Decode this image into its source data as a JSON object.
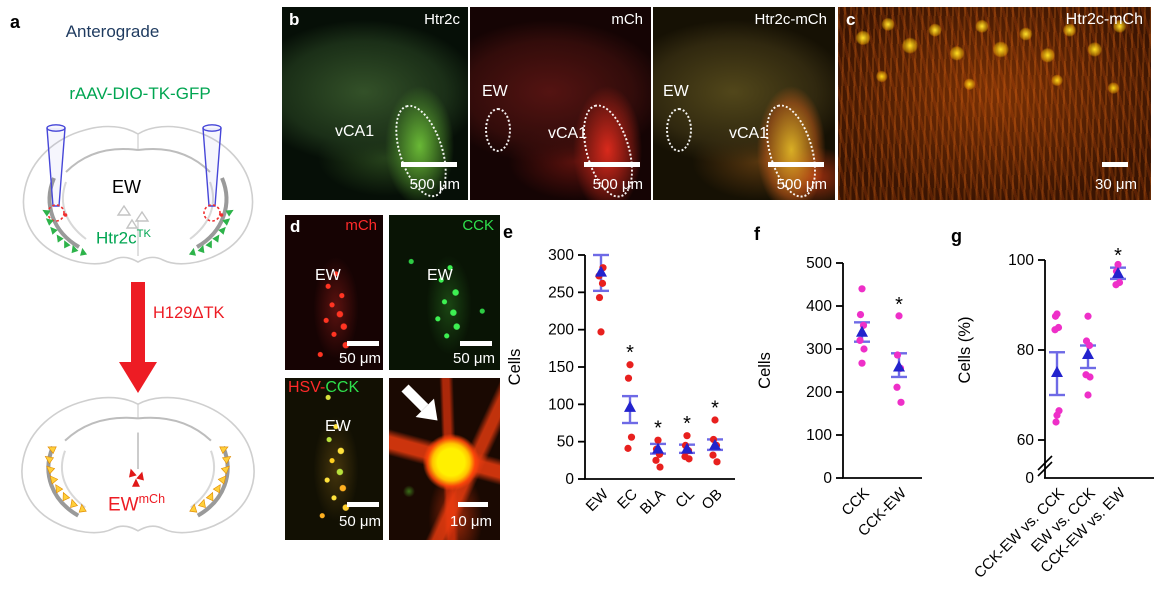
{
  "colors": {
    "title_navy": "#1e3a5f",
    "gfp_green": "#00a551",
    "virus_red": "#ed1c24",
    "point_red": "#e8201e",
    "point_magenta": "#ee2fc8",
    "mean_blue": "#2323cd",
    "error_blue": "#6e6ae6"
  },
  "panel_a": {
    "letter": "a",
    "title": "Anterograde",
    "virus": "rAAV-DIO-TK-GFP",
    "region": "EW",
    "genotype": "Htr2c",
    "genotype_sup": "TK",
    "tracer": "H129ΔTK",
    "result": "EW",
    "result_sup": "mCh"
  },
  "panel_b": {
    "letter": "b",
    "images": [
      {
        "tag": "Htr2c",
        "region2": "vCA1",
        "scale": "500 μm"
      },
      {
        "tag": "mCh",
        "region1": "EW",
        "region2": "vCA1",
        "scale": "500 μm"
      },
      {
        "tag": "Htr2c-mCh",
        "region1": "EW",
        "region2": "vCA1",
        "scale": "500 μm"
      }
    ]
  },
  "panel_c": {
    "letter": "c",
    "tag": "Htr2c-mCh",
    "scale": "30 μm"
  },
  "panel_d": {
    "letter": "d",
    "images": [
      {
        "tag": "mCh",
        "region": "EW",
        "scale": "50 μm"
      },
      {
        "tag": "CCK",
        "region": "EW",
        "scale": "50 μm"
      },
      {
        "tag_red": "HSV-",
        "tag_green": "CCK",
        "region": "EW",
        "scale": "50 μm"
      },
      {
        "scale": "10 μm"
      }
    ]
  },
  "chart_data": [
    {
      "id": "e",
      "panel_letter": "e",
      "type": "scatter",
      "title": "",
      "xlabel": "",
      "ylabel": "Cells",
      "ylim": [
        0,
        300
      ],
      "yticks": [
        0,
        50,
        100,
        150,
        200,
        250,
        300
      ],
      "grid": false,
      "point_color": "#e8201e",
      "mean_color": "#2323cd",
      "error_color": "#6e6ae6",
      "categories": [
        "EW",
        "EC",
        "BLA",
        "CL",
        "OB"
      ],
      "groups": [
        {
          "label": "EW",
          "points": [
            197,
            243,
            262,
            272,
            283
          ],
          "mean": 277,
          "err": [
            252,
            300
          ],
          "sig": false
        },
        {
          "label": "EC",
          "points": [
            153,
            135,
            56,
            41
          ],
          "mean": 96,
          "err": [
            75,
            111
          ],
          "sig": true
        },
        {
          "label": "BLA",
          "points": [
            52,
            40,
            33,
            25,
            16
          ],
          "mean": 40,
          "err": [
            34,
            47
          ],
          "sig": true
        },
        {
          "label": "CL",
          "points": [
            58,
            45,
            38,
            30,
            27
          ],
          "mean": 40,
          "err": [
            35,
            46
          ],
          "sig": true
        },
        {
          "label": "OB",
          "points": [
            79,
            53,
            45,
            32,
            23
          ],
          "mean": 45,
          "err": [
            39,
            53
          ],
          "sig": true
        }
      ]
    },
    {
      "id": "f",
      "panel_letter": "f",
      "type": "scatter",
      "title": "",
      "xlabel": "",
      "ylabel": "Cells",
      "ylim": [
        0,
        500
      ],
      "yticks": [
        0,
        100,
        200,
        300,
        400,
        500
      ],
      "grid": false,
      "point_color": "#ee2fc8",
      "mean_color": "#2323cd",
      "error_color": "#6e6ae6",
      "categories": [
        "CCK",
        "CCK-EW"
      ],
      "groups": [
        {
          "label": "CCK",
          "points": [
            440,
            380,
            355,
            320,
            300,
            267
          ],
          "mean": 339,
          "err": [
            317,
            362
          ],
          "sig": false
        },
        {
          "label": "CCK-EW",
          "points": [
            377,
            286,
            255,
            211,
            176
          ],
          "mean": 258,
          "err": [
            235,
            290
          ],
          "sig": true
        }
      ]
    },
    {
      "id": "g",
      "panel_letter": "g",
      "type": "scatter",
      "title": "",
      "xlabel": "",
      "ylabel": "Cells (%)",
      "ylim": [
        60,
        100
      ],
      "yticks": [
        60,
        80,
        100
      ],
      "axis_break": true,
      "zero_label": "0",
      "grid": false,
      "point_color": "#ee2fc8",
      "mean_color": "#2323cd",
      "error_color": "#6e6ae6",
      "categories": [
        "CCK-EW vs. CCK",
        "EW vs. CCK",
        "CCK-EW vs. EW"
      ],
      "groups": [
        {
          "label": "CCK-EW vs. CCK",
          "points": [
            88,
            87.5,
            85,
            84.5,
            66.5,
            65.5,
            64
          ],
          "mean": 75,
          "err": [
            70,
            79.5
          ],
          "sig": false
        },
        {
          "label": "EW vs. CCK",
          "points": [
            87.5,
            82,
            81,
            74.5,
            74,
            70
          ],
          "mean": 79,
          "err": [
            76,
            81
          ],
          "sig": false
        },
        {
          "label": "CCK-EW vs. EW",
          "points": [
            99,
            97.5,
            95,
            94.5
          ],
          "mean": 97,
          "err": [
            95.8,
            98.3
          ],
          "sig": true
        }
      ]
    }
  ]
}
